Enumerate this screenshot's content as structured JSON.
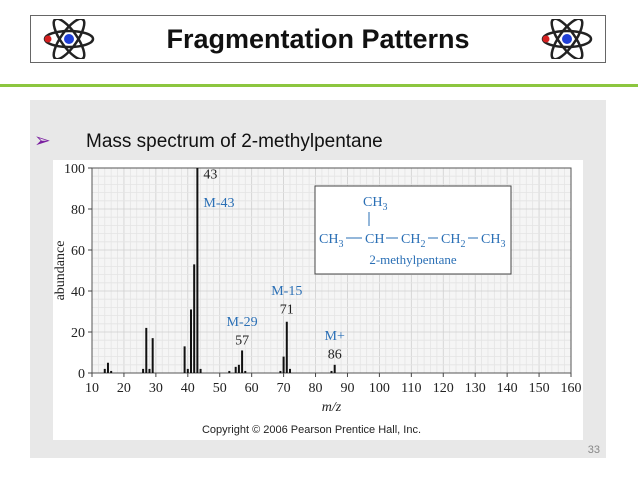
{
  "slide": {
    "title": "Fragmentation Patterns",
    "bullet_text": "Mass spectrum of 2-methylpentane",
    "page_number": "33",
    "accent_color": "#8cc63f",
    "bullet_color": "#7a1fa0",
    "icons": [
      "atom-icon",
      "bullet-arrow-icon"
    ]
  },
  "chart_data": {
    "type": "bar",
    "xlabel": "m/z",
    "ylabel": "abundance",
    "xlim": [
      10,
      160
    ],
    "ylim": [
      0,
      100
    ],
    "x_ticks": [
      10,
      20,
      30,
      40,
      50,
      60,
      70,
      80,
      90,
      100,
      110,
      120,
      130,
      140,
      150,
      160
    ],
    "y_ticks": [
      0,
      20,
      40,
      60,
      80,
      100
    ],
    "grid": true,
    "peaks": [
      {
        "mz": 14,
        "value": 2
      },
      {
        "mz": 15,
        "value": 5
      },
      {
        "mz": 16,
        "value": 1
      },
      {
        "mz": 26,
        "value": 2
      },
      {
        "mz": 27,
        "value": 22
      },
      {
        "mz": 28,
        "value": 2
      },
      {
        "mz": 29,
        "value": 17
      },
      {
        "mz": 39,
        "value": 13
      },
      {
        "mz": 40,
        "value": 2
      },
      {
        "mz": 41,
        "value": 31
      },
      {
        "mz": 42,
        "value": 53
      },
      {
        "mz": 43,
        "value": 100
      },
      {
        "mz": 44,
        "value": 2
      },
      {
        "mz": 53,
        "value": 1
      },
      {
        "mz": 55,
        "value": 3
      },
      {
        "mz": 56,
        "value": 4
      },
      {
        "mz": 57,
        "value": 11
      },
      {
        "mz": 58,
        "value": 1
      },
      {
        "mz": 69,
        "value": 1
      },
      {
        "mz": 70,
        "value": 8
      },
      {
        "mz": 71,
        "value": 25
      },
      {
        "mz": 72,
        "value": 2
      },
      {
        "mz": 85,
        "value": 1
      },
      {
        "mz": 86,
        "value": 4
      }
    ],
    "annotations": [
      {
        "text": "43",
        "mz": 43,
        "y": 95,
        "color": "#222"
      },
      {
        "text": "M-43",
        "mz": 43,
        "y": 81,
        "color": "#2a6fb5"
      },
      {
        "text": "M-15",
        "mz": 71,
        "y": 38,
        "color": "#2a6fb5"
      },
      {
        "text": "71",
        "mz": 71,
        "y": 29,
        "color": "#222"
      },
      {
        "text": "M-29",
        "mz": 57,
        "y": 23,
        "color": "#2a6fb5"
      },
      {
        "text": "57",
        "mz": 57,
        "y": 14,
        "color": "#222"
      },
      {
        "text": "M+",
        "mz": 86,
        "y": 16,
        "color": "#2a6fb5"
      },
      {
        "text": "86",
        "mz": 86,
        "y": 7,
        "color": "#222"
      }
    ],
    "structure": {
      "top": "CH",
      "top_sub": "3",
      "main": [
        {
          "t": "CH",
          "s": "3"
        },
        {
          "t": "CH",
          "s": ""
        },
        {
          "t": "CH",
          "s": "2"
        },
        {
          "t": "CH",
          "s": "2"
        },
        {
          "t": "CH",
          "s": "3"
        }
      ],
      "name": "2-methylpentane"
    },
    "copyright": "Copyright © 2006 Pearson Prentice Hall, Inc."
  }
}
